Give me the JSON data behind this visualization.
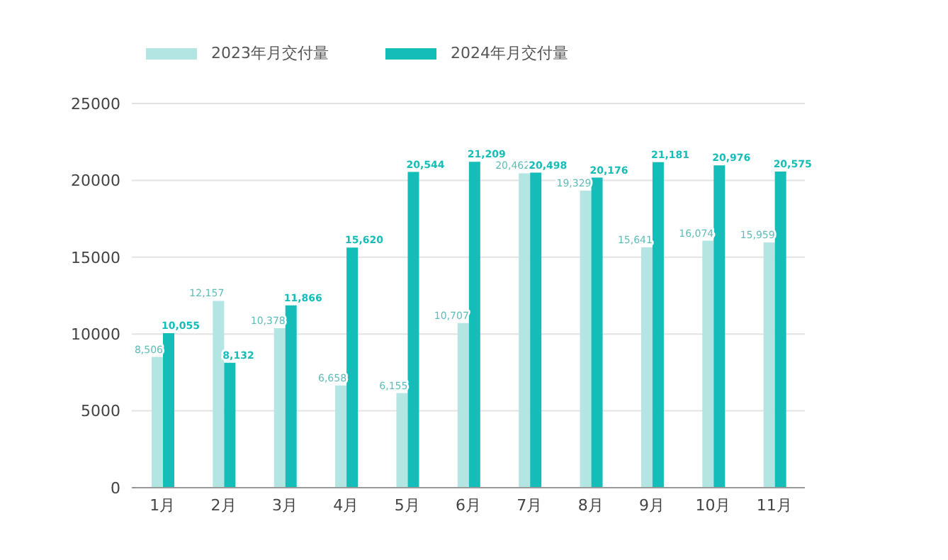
{
  "chart_data": {
    "type": "bar",
    "categories": [
      "1月",
      "2月",
      "3月",
      "4月",
      "5月",
      "6月",
      "7月",
      "8月",
      "9月",
      "10月",
      "11月"
    ],
    "series": [
      {
        "name": "2023年月交付量",
        "color": "#b3e5e3",
        "values": [
          8506,
          12157,
          10378,
          6658,
          6155,
          10707,
          20462,
          19329,
          15641,
          16074,
          15959
        ],
        "value_labels": [
          "8,506",
          "12,157",
          "10,378",
          "6,658",
          "6,155",
          "10,707",
          "20,462",
          "19,329",
          "15,641",
          "16,074",
          "15,959"
        ]
      },
      {
        "name": "2024年月交付量",
        "color": "#14bdb8",
        "values": [
          10055,
          8132,
          11866,
          15620,
          20544,
          21209,
          20498,
          20176,
          21181,
          20976,
          20575
        ],
        "value_labels": [
          "10,055",
          "8,132",
          "11,866",
          "15,620",
          "20,544",
          "21,209",
          "20,498",
          "20,176",
          "21,181",
          "20,976",
          "20,575"
        ]
      }
    ],
    "ylim": [
      0,
      25000
    ],
    "yticks": [
      0,
      5000,
      10000,
      15000,
      20000,
      25000
    ],
    "grid": "y",
    "legend": "top left"
  }
}
